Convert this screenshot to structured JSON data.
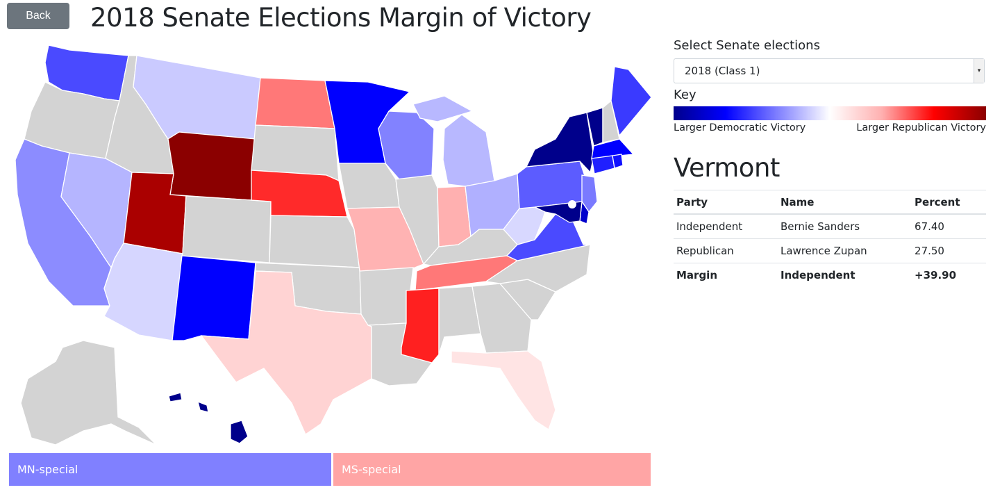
{
  "header": {
    "back_label": "Back",
    "title": "2018 Senate Elections Margin of Victory"
  },
  "controls": {
    "select_label": "Select Senate elections",
    "selected_election": "2018 (Class 1)"
  },
  "key": {
    "label": "Key",
    "left_label": "Larger Democratic Victory",
    "right_label": "Larger Republican Victory",
    "colors": [
      "#00008b",
      "#0000ff",
      "#8080ff",
      "#ffffff",
      "#ffb0b0",
      "#ff0000",
      "#8b0000"
    ]
  },
  "selected_state": {
    "name": "Vermont",
    "columns": [
      "Party",
      "Name",
      "Percent"
    ],
    "rows": [
      {
        "party": "Independent",
        "name": "Bernie Sanders",
        "percent": "67.40"
      },
      {
        "party": "Republican",
        "name": "Lawrence Zupan",
        "percent": "27.50"
      }
    ],
    "margin": {
      "label": "Margin",
      "winner": "Independent",
      "value": "+39.90"
    }
  },
  "specials": [
    {
      "label": "MN-special",
      "color": "#8080ff"
    },
    {
      "label": "MS-special",
      "color": "#ffa5a5"
    }
  ],
  "map_colors": {
    "WA": "#4a4aff",
    "OR": "#d3d3d3",
    "CA": "#8c8cff",
    "ID": "#d3d3d3",
    "NV": "#b5b5ff",
    "MT": "#cacaff",
    "WY": "#8b0000",
    "UT": "#aa0000",
    "AZ": "#d6d6ff",
    "NM": "#0000ff",
    "ND": "#ff7878",
    "SD": "#d3d3d3",
    "NE": "#ff2a2a",
    "KS": "#d3d3d3",
    "OK": "#d3d3d3",
    "TX": "#ffd3d3",
    "MN": "#0000ff",
    "IA": "#d3d3d3",
    "MO": "#ffb3b3",
    "AR": "#d3d3d3",
    "LA": "#d3d3d3",
    "WI": "#8282ff",
    "IL": "#d3d3d3",
    "MI": "#b8b8ff",
    "IN": "#ffb0b0",
    "OH": "#b0b0ff",
    "KY": "#d3d3d3",
    "TN": "#ff7878",
    "MS": "#ff2020",
    "AL": "#d3d3d3",
    "GA": "#d3d3d3",
    "FL": "#ffe4e4",
    "SC": "#d3d3d3",
    "NC": "#d3d3d3",
    "VA": "#4a4aff",
    "WV": "#d8d8ff",
    "PA": "#5c5cff",
    "NY": "#00008b",
    "VT": "#00008b",
    "NH": "#d3d3d3",
    "ME": "#3a3aff",
    "MA": "#0000ff",
    "CT": "#2020ff",
    "RI": "#1010ff",
    "NJ": "#7a7aff",
    "DE": "#0000cc",
    "MD": "#00008b",
    "AK": "#d3d3d3",
    "HI": "#00008b",
    "CO": "#d3d3d3"
  }
}
